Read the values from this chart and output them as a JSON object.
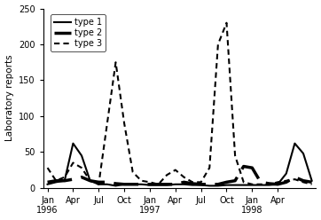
{
  "ylabel": "Laboratory reports",
  "ylim": [
    0,
    250
  ],
  "yticks": [
    0,
    50,
    100,
    150,
    200,
    250
  ],
  "type1": [
    5,
    8,
    10,
    62,
    45,
    10,
    5,
    5,
    3,
    5,
    5,
    5,
    4,
    4,
    4,
    5,
    5,
    4,
    4,
    3,
    3,
    4,
    4,
    4,
    4,
    4,
    4,
    5,
    20,
    62,
    48,
    10
  ],
  "type2": [
    8,
    10,
    10,
    12,
    15,
    10,
    8,
    8,
    6,
    5,
    5,
    5,
    5,
    5,
    5,
    5,
    8,
    6,
    5,
    5,
    5,
    8,
    10,
    30,
    28,
    8,
    6,
    5,
    8,
    15,
    10,
    8
  ],
  "type3": [
    28,
    10,
    15,
    35,
    28,
    10,
    5,
    90,
    175,
    90,
    22,
    10,
    8,
    5,
    18,
    25,
    15,
    8,
    8,
    28,
    200,
    230,
    45,
    8,
    5,
    5,
    5,
    8,
    10,
    12,
    8,
    5
  ],
  "n_months": 32,
  "xtick_positions": [
    0,
    3,
    6,
    9,
    12,
    15,
    18,
    21,
    24,
    27
  ],
  "xtick_labels": [
    "Jan\n1996",
    "Apr",
    "Jul",
    "Oct",
    "Jan\n1997",
    "Apr",
    "Jul",
    "Oct",
    "Jan\n1998",
    "Apr"
  ],
  "type1_lw": 1.5,
  "type1_ls": "solid",
  "type2_lw": 2.5,
  "type2_dash": [
    8,
    3
  ],
  "type3_lw": 1.5,
  "type3_dash": [
    3,
    2
  ],
  "line_color": "#000000",
  "legend_labels": [
    "type 1",
    "type 2",
    "type 3"
  ],
  "bg_color": "#ffffff"
}
